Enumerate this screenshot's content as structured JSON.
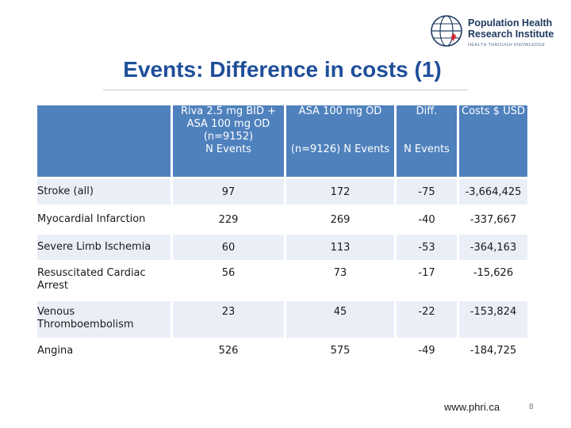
{
  "logo": {
    "line1": "Population Health",
    "line2": "Research Institute",
    "tagline": "HEALTH THROUGH KNOWLEDGE"
  },
  "title": "Events: Difference in costs (1)",
  "table": {
    "headers": [
      {
        "line1": "Riva 2.5 mg BID + ASA 100 mg OD (n=9152)",
        "line2": "N Events"
      },
      {
        "line1": "ASA 100 mg OD",
        "line2": "(n=9126) N Events"
      },
      {
        "line1": "Diff.",
        "line2": "N Events"
      },
      {
        "line1": "Costs $ USD",
        "line2": ""
      }
    ],
    "rows": [
      {
        "label": "Stroke (all)",
        "riva": "97",
        "asa": "172",
        "diff": "-75",
        "cost": "-3,664,425"
      },
      {
        "label": "Myocardial Infarction",
        "riva": "229",
        "asa": "269",
        "diff": "-40",
        "cost": "-337,667"
      },
      {
        "label": "Severe Limb Ischemia",
        "riva": "60",
        "asa": "113",
        "diff": "-53",
        "cost": "-364,163"
      },
      {
        "label": "Resuscitated Cardiac Arrest",
        "riva": "56",
        "asa": "73",
        "diff": "-17",
        "cost": "-15,626"
      },
      {
        "label": "Venous Thromboembolism",
        "riva": "23",
        "asa": "45",
        "diff": "-22",
        "cost": "-153,824"
      },
      {
        "label": "Angina",
        "riva": "526",
        "asa": "575",
        "diff": "-49",
        "cost": "-184,725"
      }
    ]
  },
  "footer": {
    "url": "www.phri.ca",
    "page": "8"
  },
  "colors": {
    "title": "#1f4f9a",
    "header_fill": "#4f81bd",
    "row_band": "#eaeff7"
  }
}
